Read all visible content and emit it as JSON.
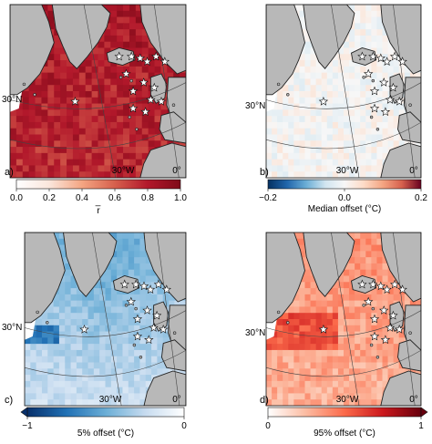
{
  "figure": {
    "panels": [
      {
        "label": "a)",
        "lat_label": "30°N",
        "lon_labels": [
          "30°W",
          "0°"
        ],
        "colorbar": {
          "ticks": [
            "0.0",
            "0.2",
            "0.4",
            "0.6",
            "0.8",
            "1.0"
          ],
          "title": "r̅",
          "vmin": 0,
          "vmax": 1,
          "cmap": [
            "#ffffff",
            "#fbe6dc",
            "#f4a582",
            "#d6604d",
            "#b2182b",
            "#7f0a18"
          ],
          "extend": "none"
        },
        "field": {
          "base": 0.85,
          "spread": 0.12,
          "seed": 11
        }
      },
      {
        "label": "b)",
        "lat_label": "30°N",
        "lon_labels": [
          "30°W",
          "0°"
        ],
        "colorbar": {
          "ticks": [
            "−0.2",
            "0.0",
            "0.2"
          ],
          "title": "Median offset (°C)",
          "vmin": -0.2,
          "vmax": 0.2,
          "cmap": [
            "#053061",
            "#2166ac",
            "#6baed6",
            "#d1e5f0",
            "#f7f7f7",
            "#fddbc7",
            "#f4a582",
            "#d6604d",
            "#67001f"
          ],
          "extend": "none"
        },
        "field": {
          "base": 0.0,
          "spread": 0.03,
          "seed": 23
        }
      },
      {
        "label": "c)",
        "lat_label": "30°N",
        "lon_labels": [
          "30°W",
          "0°"
        ],
        "colorbar": {
          "ticks": [
            "−1",
            "0"
          ],
          "title": "5% offset (°C)",
          "vmin": -1,
          "vmax": 0,
          "cmap": [
            "#08306b",
            "#2171b5",
            "#6baed6",
            "#c6dbef",
            "#ffffff"
          ],
          "extend": "min"
        },
        "field": {
          "base": -0.22,
          "spread": 0.08,
          "seed": 37
        }
      },
      {
        "label": "d)",
        "lat_label": "30°N",
        "lon_labels": [
          "30°W",
          "0°"
        ],
        "colorbar": {
          "ticks": [
            "0",
            "1"
          ],
          "title": "95% offset (°C)",
          "vmin": 0,
          "vmax": 1,
          "cmap": [
            "#ffffff",
            "#fcbba1",
            "#fb6a4a",
            "#cb181d",
            "#67000d"
          ],
          "extend": "max"
        },
        "field": {
          "base": 0.28,
          "spread": 0.1,
          "seed": 53
        }
      }
    ],
    "colors": {
      "land": "#b8b8b8",
      "coast": "#222222",
      "grid": "#444444",
      "star_fill": "#ffffff"
    }
  }
}
